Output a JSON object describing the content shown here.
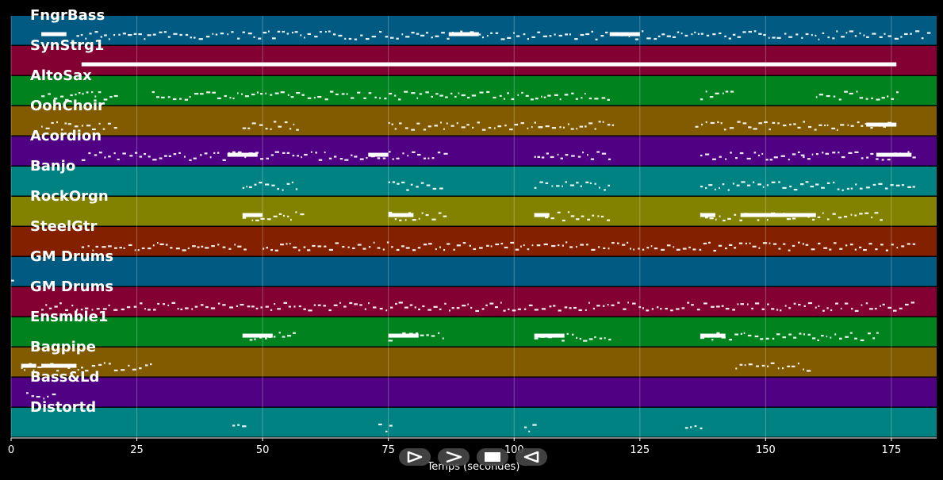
{
  "chart_data": {
    "type": "piano-roll",
    "xlabel": "Temps (secondes)",
    "xlim": [
      0,
      184
    ],
    "x_ticks": [
      0,
      25,
      50,
      75,
      100,
      125,
      150,
      175
    ],
    "grid": true,
    "tracks": [
      {
        "name": "FngrBass",
        "color": "#005a82",
        "notes": [
          [
            13,
            92
          ],
          [
            93,
            183
          ]
        ],
        "blocks": [
          [
            6,
            11
          ],
          [
            87,
            93
          ],
          [
            119,
            125
          ]
        ]
      },
      {
        "name": "SynStrg1",
        "color": "#820032",
        "notes": [],
        "blocks": [
          [
            14,
            176
          ]
        ]
      },
      {
        "name": "AltoSax",
        "color": "#00821e",
        "notes": [
          [
            6,
            21
          ],
          [
            28,
            119
          ],
          [
            137,
            144
          ],
          [
            160,
            176
          ]
        ],
        "blocks": []
      },
      {
        "name": "OohChoir",
        "color": "#825a00",
        "notes": [
          [
            6,
            21
          ],
          [
            46,
            57
          ],
          [
            75,
            105
          ],
          [
            105,
            120
          ],
          [
            136,
            176
          ]
        ],
        "blocks": [
          [
            170,
            176
          ]
        ]
      },
      {
        "name": "Acordion",
        "color": "#500082",
        "notes": [
          [
            14,
            86
          ],
          [
            104,
            119
          ],
          [
            137,
            158
          ],
          [
            157,
            180
          ]
        ],
        "blocks": [
          [
            43,
            49
          ],
          [
            71,
            75
          ],
          [
            172,
            179
          ]
        ]
      },
      {
        "name": "Banjo",
        "color": "#008282",
        "notes": [
          [
            46,
            57
          ],
          [
            75,
            86
          ],
          [
            104,
            119
          ],
          [
            137,
            180
          ]
        ],
        "blocks": []
      },
      {
        "name": "RockOrgn",
        "color": "#828200",
        "notes": [
          [
            46,
            58
          ],
          [
            75,
            86
          ],
          [
            104,
            119
          ],
          [
            137,
            173
          ]
        ],
        "blocks": [
          [
            46,
            50
          ],
          [
            75,
            80
          ],
          [
            104,
            107
          ],
          [
            137,
            140
          ],
          [
            145,
            160
          ]
        ]
      },
      {
        "name": "SteelGtr",
        "color": "#822000",
        "notes": [
          [
            14,
            47
          ],
          [
            50,
            180
          ]
        ],
        "blocks": []
      },
      {
        "name": "GM Drums",
        "color": "#005a82",
        "notes": [
          [
            0,
            1
          ]
        ],
        "blocks": []
      },
      {
        "name": "GM Drums",
        "color": "#820032",
        "notes": [
          [
            6,
            180
          ]
        ],
        "blocks": []
      },
      {
        "name": "Ensmble1",
        "color": "#00821e",
        "notes": [
          [
            46,
            57
          ],
          [
            75,
            86
          ],
          [
            104,
            119
          ],
          [
            137,
            173
          ]
        ],
        "blocks": [
          [
            46,
            52
          ],
          [
            75,
            81
          ],
          [
            104,
            110
          ],
          [
            137,
            142
          ]
        ]
      },
      {
        "name": "Bagpipe",
        "color": "#825a00",
        "notes": [
          [
            2,
            28
          ],
          [
            144,
            159
          ]
        ],
        "blocks": [
          [
            6,
            13
          ],
          [
            2,
            5
          ]
        ]
      },
      {
        "name": "Bass&Ld",
        "color": "#500082",
        "notes": [
          [
            3,
            9
          ]
        ],
        "blocks": []
      },
      {
        "name": "Distortd",
        "color": "#008282",
        "notes": [
          [
            44,
            47
          ],
          [
            73,
            76
          ],
          [
            102,
            105
          ],
          [
            134,
            137
          ]
        ],
        "blocks": []
      }
    ]
  },
  "controls": [
    {
      "name": "play-icon",
      "symbol": "play"
    },
    {
      "name": "next-icon",
      "symbol": "chevron"
    },
    {
      "name": "stop-icon",
      "symbol": "stop"
    },
    {
      "name": "back-icon",
      "symbol": "back"
    }
  ]
}
